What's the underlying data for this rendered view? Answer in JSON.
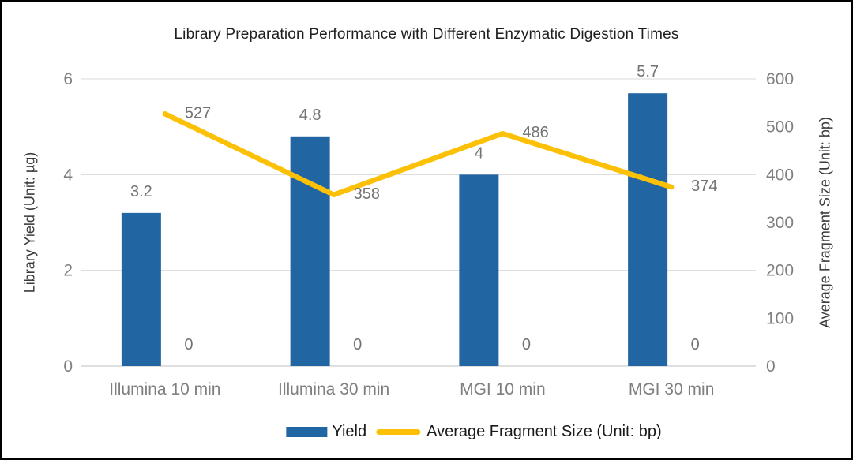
{
  "title": "Library Preparation Performance with Different Enzymatic Digestion Times",
  "colors": {
    "bar": "#2166A3",
    "line": "#FCC006",
    "gridline": "#D9D9D9",
    "axis_line": "#BFBFBF",
    "tick_text": "#7f7f7f",
    "data_label_text": "#737373"
  },
  "chart_data": {
    "type": "bar",
    "subtype": "combo bar+line, dual axis",
    "title": "Library Preparation Performance with Different Enzymatic Digestion Times",
    "categories": [
      "Illumina 10 min",
      "Illumina 30 min",
      "MGI 10 min",
      "MGI 30 min"
    ],
    "series": [
      {
        "name": "Yield",
        "type": "bar",
        "axis": "left",
        "color": "#2166A3",
        "values": [
          3.2,
          4.8,
          4,
          5.7
        ],
        "data_labels": [
          "3.2",
          "4.8",
          "4",
          "5.7"
        ]
      },
      {
        "name": "Average Fragment Size (Unit: bp)",
        "type": "line",
        "axis": "right",
        "color": "#FCC006",
        "values": [
          527,
          358,
          486,
          374
        ],
        "data_labels": [
          "527",
          "358",
          "486",
          "374"
        ]
      }
    ],
    "zero_series_labels": [
      "0",
      "0",
      "0",
      "0"
    ],
    "left_axis": {
      "title": "Library Yield (Unit: µg)",
      "min": 0,
      "max": 6,
      "ticks": [
        "0",
        "2",
        "4",
        "6"
      ]
    },
    "right_axis": {
      "title": "Average Fragment Size (Unit: bp)",
      "min": 0,
      "max": 600,
      "ticks": [
        "0",
        "100",
        "200",
        "300",
        "400",
        "500",
        "600"
      ]
    },
    "grid": "horizontal gridlines at left-axis ticks",
    "legend_position": "bottom"
  },
  "legend": {
    "items": [
      {
        "label": "Yield",
        "marker": "rect",
        "color": "#2166A3"
      },
      {
        "label": "Average Fragment Size (Unit: bp)",
        "marker": "line",
        "color": "#FCC006"
      }
    ]
  }
}
